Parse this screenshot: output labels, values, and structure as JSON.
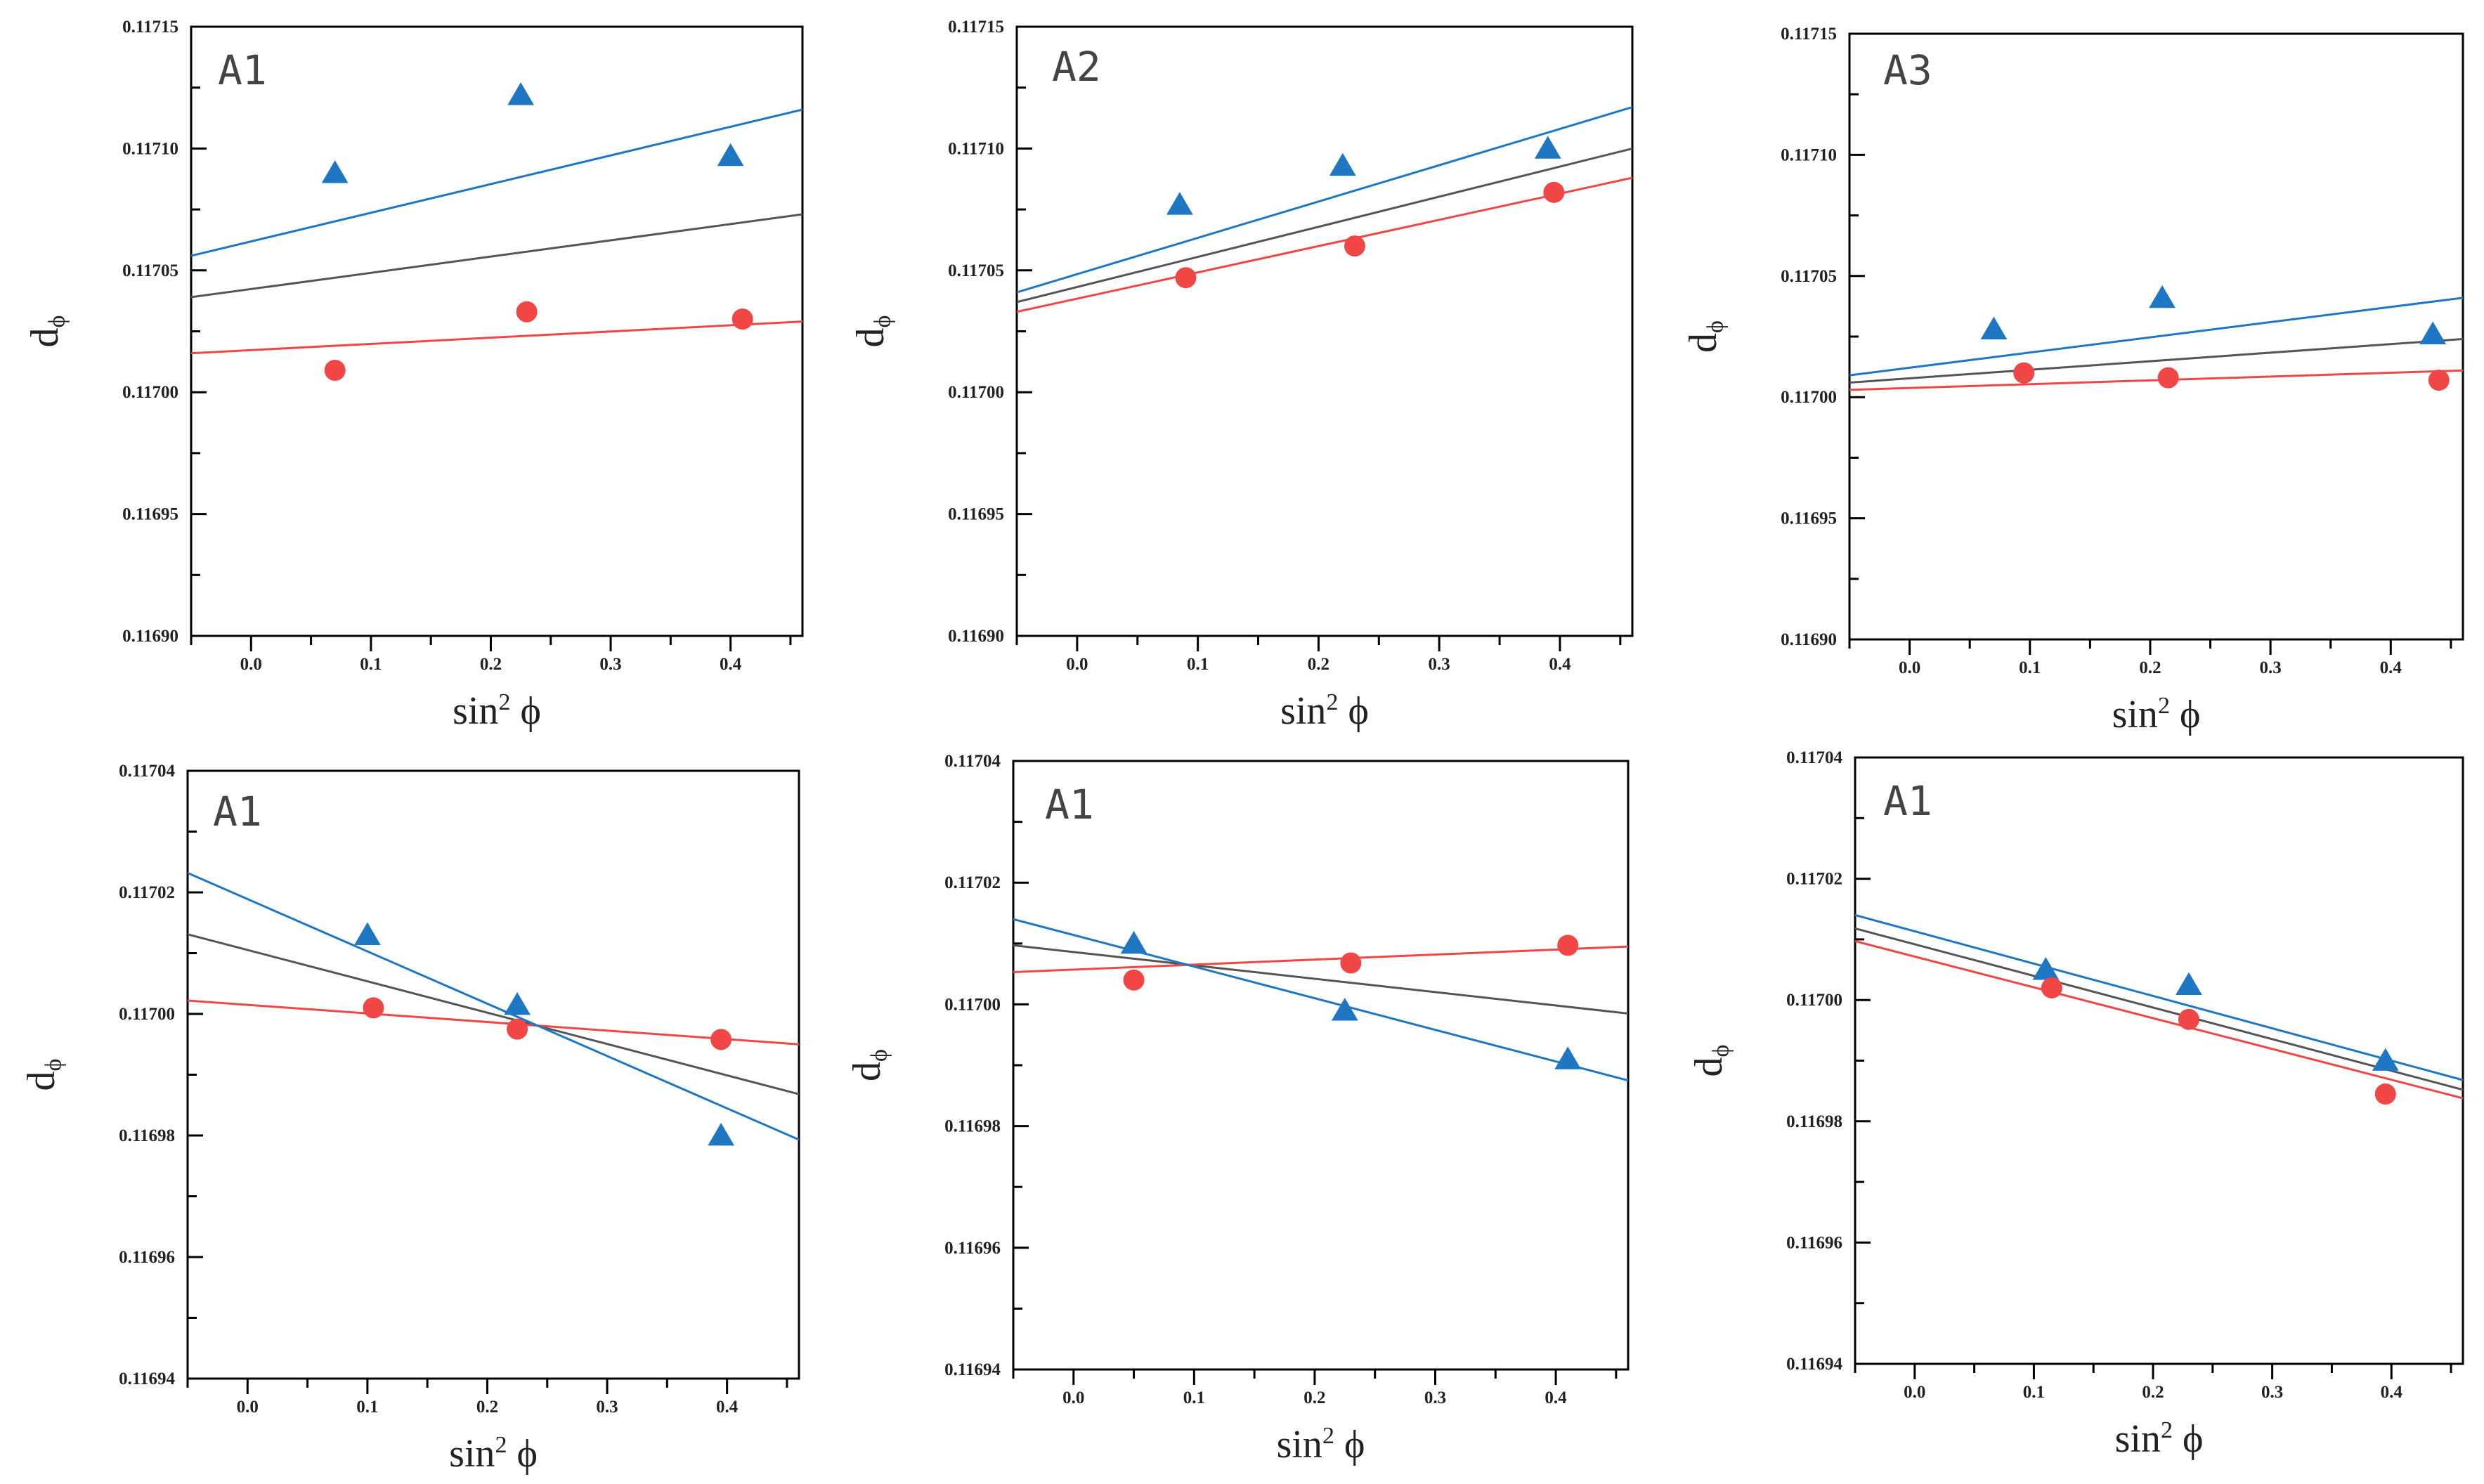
{
  "colors": {
    "blue": "#1f77c4",
    "red": "#f04646",
    "gray": "#555555",
    "axis": "#000000"
  },
  "chart_data": [
    {
      "type": "scatter",
      "title": "A1",
      "xlabel": "sin² ϕ",
      "ylabel": "dϕ",
      "xlim": [
        -0.05,
        0.46
      ],
      "ylim": [
        0.1169,
        0.11715
      ],
      "xticks": [
        0.0,
        0.1,
        0.2,
        0.3,
        0.4
      ],
      "xtick_labels": [
        "0.0",
        "0.1",
        "0.2",
        "0.3",
        "0.4"
      ],
      "yticks": [
        0.1169,
        0.11695,
        0.117,
        0.11705,
        0.1171,
        0.11715
      ],
      "ytick_labels": [
        "0.11690",
        "0.11695",
        "0.11700",
        "0.11705",
        "0.11710",
        "0.11715"
      ],
      "yminor": [
        0.116925,
        0.116975,
        0.117025,
        0.117075,
        0.117125
      ],
      "series": [
        {
          "name": "blue triangles",
          "marker": "triangle",
          "color": "#1f77c4",
          "x": [
            0.07,
            0.225,
            0.4
          ],
          "y": [
            0.11709,
            0.117122,
            0.117097
          ],
          "fit": [
            [
              -0.05,
              0.117056
            ],
            [
              0.46,
              0.117116
            ]
          ]
        },
        {
          "name": "red circles",
          "marker": "circle",
          "color": "#f04646",
          "x": [
            0.07,
            0.23,
            0.41
          ],
          "y": [
            0.117009,
            0.117033,
            0.11703
          ],
          "fit": [
            [
              -0.05,
              0.117016
            ],
            [
              0.46,
              0.117029
            ]
          ]
        },
        {
          "name": "gray fit",
          "marker": "none",
          "color": "#555555",
          "x": [],
          "y": [],
          "fit": [
            [
              -0.05,
              0.117039
            ],
            [
              0.46,
              0.117073
            ]
          ]
        }
      ]
    },
    {
      "type": "scatter",
      "title": "A2",
      "xlabel": "sin² ϕ",
      "ylabel": "dϕ",
      "xlim": [
        -0.05,
        0.46
      ],
      "ylim": [
        0.1169,
        0.11715
      ],
      "xticks": [
        0.0,
        0.1,
        0.2,
        0.3,
        0.4
      ],
      "xtick_labels": [
        "0.0",
        "0.1",
        "0.2",
        "0.3",
        "0.4"
      ],
      "yticks": [
        0.1169,
        0.11695,
        0.117,
        0.11705,
        0.1171,
        0.11715
      ],
      "ytick_labels": [
        "0.11690",
        "0.11695",
        "0.11700",
        "0.11705",
        "0.11710",
        "0.11715"
      ],
      "yminor": [
        0.116925,
        0.116975,
        0.117025,
        0.117075,
        0.117125
      ],
      "series": [
        {
          "name": "blue triangles",
          "marker": "triangle",
          "color": "#1f77c4",
          "x": [
            0.085,
            0.22,
            0.39
          ],
          "y": [
            0.117077,
            0.117093,
            0.1171
          ],
          "fit": [
            [
              -0.05,
              0.117041
            ],
            [
              0.46,
              0.117117
            ]
          ]
        },
        {
          "name": "red circles",
          "marker": "circle",
          "color": "#f04646",
          "x": [
            0.09,
            0.23,
            0.395
          ],
          "y": [
            0.117047,
            0.11706,
            0.117082
          ],
          "fit": [
            [
              -0.05,
              0.117033
            ],
            [
              0.46,
              0.117088
            ]
          ]
        },
        {
          "name": "gray fit",
          "marker": "none",
          "color": "#555555",
          "x": [],
          "y": [],
          "fit": [
            [
              -0.05,
              0.117037
            ],
            [
              0.46,
              0.1171
            ]
          ]
        }
      ]
    },
    {
      "type": "scatter",
      "title": "A3",
      "xlabel": "sin² ϕ",
      "ylabel": "dϕ",
      "xlim": [
        -0.05,
        0.46
      ],
      "ylim": [
        0.1169,
        0.11715
      ],
      "xticks": [
        0.0,
        0.1,
        0.2,
        0.3,
        0.4
      ],
      "xtick_labels": [
        "0.0",
        "0.1",
        "0.2",
        "0.3",
        "0.4"
      ],
      "yticks": [
        0.1169,
        0.11695,
        0.117,
        0.11705,
        0.1171,
        0.11715
      ],
      "ytick_labels": [
        "0.11690",
        "0.11695",
        "0.11700",
        "0.11705",
        "0.11710",
        "0.11715"
      ],
      "yminor": [
        0.116925,
        0.116975,
        0.117025,
        0.117075,
        0.117125
      ],
      "series": [
        {
          "name": "blue triangles",
          "marker": "triangle",
          "color": "#1f77c4",
          "x": [
            0.07,
            0.21,
            0.435
          ],
          "y": [
            0.117028,
            0.117041,
            0.117026
          ],
          "fit": [
            [
              -0.05,
              0.117009
            ],
            [
              0.46,
              0.117041
            ]
          ]
        },
        {
          "name": "red circles",
          "marker": "circle",
          "color": "#f04646",
          "x": [
            0.095,
            0.215,
            0.44
          ],
          "y": [
            0.11701,
            0.117008,
            0.117007
          ],
          "fit": [
            [
              -0.05,
              0.117003
            ],
            [
              0.46,
              0.117011
            ]
          ]
        },
        {
          "name": "gray fit",
          "marker": "none",
          "color": "#555555",
          "x": [],
          "y": [],
          "fit": [
            [
              -0.05,
              0.117006
            ],
            [
              0.46,
              0.117024
            ]
          ]
        }
      ]
    },
    {
      "type": "scatter",
      "title": "A1",
      "xlabel": "sin² ϕ",
      "ylabel": "dϕ",
      "xlim": [
        -0.05,
        0.46
      ],
      "ylim": [
        0.11694,
        0.11704
      ],
      "xticks": [
        0.0,
        0.1,
        0.2,
        0.3,
        0.4
      ],
      "xtick_labels": [
        "0.0",
        "0.1",
        "0.2",
        "0.3",
        "0.4"
      ],
      "yticks": [
        0.11694,
        0.11696,
        0.11698,
        0.117,
        0.11702,
        0.11704
      ],
      "ytick_labels": [
        "0.11694",
        "0.11696",
        "0.11698",
        "0.11700",
        "0.11702",
        "0.11704"
      ],
      "yminor": [
        0.11695,
        0.11697,
        0.11699,
        0.11701,
        0.11703
      ],
      "series": [
        {
          "name": "blue triangles",
          "marker": "triangle",
          "color": "#1f77c4",
          "x": [
            0.1,
            0.225,
            0.395
          ],
          "y": [
            0.117013,
            0.1170015,
            0.11698
          ],
          "fit": [
            [
              -0.05,
              0.1170232
            ],
            [
              0.46,
              0.1169793
            ]
          ]
        },
        {
          "name": "red circles",
          "marker": "circle",
          "color": "#f04646",
          "x": [
            0.105,
            0.225,
            0.395
          ],
          "y": [
            0.117001,
            0.1169975,
            0.1169958
          ],
          "fit": [
            [
              -0.05,
              0.1170022
            ],
            [
              0.46,
              0.116995
            ]
          ]
        },
        {
          "name": "gray fit",
          "marker": "none",
          "color": "#555555",
          "x": [],
          "y": [],
          "fit": [
            [
              -0.05,
              0.1170131
            ],
            [
              0.46,
              0.1169868
            ]
          ]
        }
      ]
    },
    {
      "type": "scatter",
      "title": "A1",
      "xlabel": "sin² ϕ",
      "ylabel": "dϕ",
      "xlim": [
        -0.05,
        0.46
      ],
      "ylim": [
        0.11694,
        0.11704
      ],
      "xticks": [
        0.0,
        0.1,
        0.2,
        0.3,
        0.4
      ],
      "xtick_labels": [
        "0.0",
        "0.1",
        "0.2",
        "0.3",
        "0.4"
      ],
      "yticks": [
        0.11694,
        0.11696,
        0.11698,
        0.117,
        0.11702,
        0.11704
      ],
      "ytick_labels": [
        "0.11694",
        "0.11696",
        "0.11698",
        "0.11700",
        "0.11702",
        "0.11704"
      ],
      "yminor": [
        0.11695,
        0.11697,
        0.11699,
        0.11701,
        0.11703
      ],
      "series": [
        {
          "name": "blue triangles",
          "marker": "triangle",
          "color": "#1f77c4",
          "x": [
            0.05,
            0.225,
            0.41
          ],
          "y": [
            0.11701,
            0.116999,
            0.116991
          ],
          "fit": [
            [
              -0.05,
              0.117014
            ],
            [
              0.46,
              0.1169875
            ]
          ]
        },
        {
          "name": "red circles",
          "marker": "circle",
          "color": "#f04646",
          "x": [
            0.05,
            0.23,
            0.41
          ],
          "y": [
            0.117004,
            0.1170068,
            0.1170097
          ],
          "fit": [
            [
              -0.05,
              0.1170053
            ],
            [
              0.46,
              0.1170095
            ]
          ]
        },
        {
          "name": "gray fit",
          "marker": "none",
          "color": "#555555",
          "x": [],
          "y": [],
          "fit": [
            [
              -0.05,
              0.1170097
            ],
            [
              0.46,
              0.1169985
            ]
          ]
        }
      ]
    },
    {
      "type": "scatter",
      "title": "A1",
      "xlabel": "sin² ϕ",
      "ylabel": "dϕ",
      "xlim": [
        -0.05,
        0.46
      ],
      "ylim": [
        0.11694,
        0.11704
      ],
      "xticks": [
        0.0,
        0.1,
        0.2,
        0.3,
        0.4
      ],
      "xtick_labels": [
        "0.0",
        "0.1",
        "0.2",
        "0.3",
        "0.4"
      ],
      "yticks": [
        0.11694,
        0.11696,
        0.11698,
        0.117,
        0.11702,
        0.11704
      ],
      "ytick_labels": [
        "0.11694",
        "0.11696",
        "0.11698",
        "0.11700",
        "0.11702",
        "0.11704"
      ],
      "yminor": [
        0.11695,
        0.11697,
        0.11699,
        0.11701,
        0.11703
      ],
      "series": [
        {
          "name": "blue triangles",
          "marker": "triangle",
          "color": "#1f77c4",
          "x": [
            0.11,
            0.23,
            0.395
          ],
          "y": [
            0.117005,
            0.1170025,
            0.11699
          ],
          "fit": [
            [
              -0.05,
              0.117014
            ],
            [
              0.46,
              0.1169868
            ]
          ]
        },
        {
          "name": "red circles",
          "marker": "circle",
          "color": "#f04646",
          "x": [
            0.115,
            0.23,
            0.395
          ],
          "y": [
            0.117002,
            0.1169968,
            0.1169845
          ],
          "fit": [
            [
              -0.05,
              0.1170097
            ],
            [
              0.46,
              0.1169838
            ]
          ]
        },
        {
          "name": "gray fit",
          "marker": "none",
          "color": "#555555",
          "x": [],
          "y": [],
          "fit": [
            [
              -0.05,
              0.1170118
            ],
            [
              0.46,
              0.1169852
            ]
          ]
        }
      ]
    }
  ]
}
